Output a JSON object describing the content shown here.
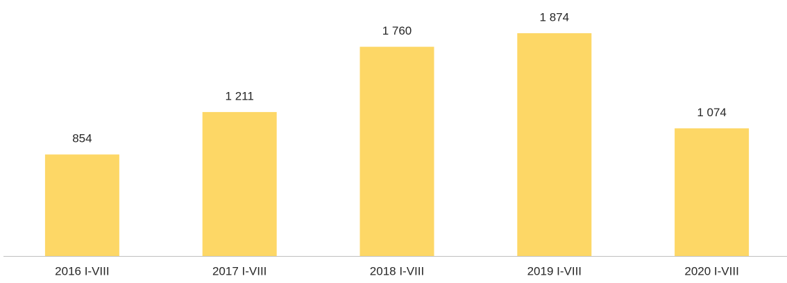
{
  "chart_data": {
    "type": "bar",
    "categories": [
      "2016 I-VIII",
      "2017 I-VIII",
      "2018 I-VIII",
      "2019 I-VIII",
      "2020 I-VIII"
    ],
    "values": [
      854,
      1211,
      1760,
      1874,
      1074
    ],
    "value_labels": [
      "854",
      "1 211",
      "1 760",
      "1 874",
      "1 074"
    ],
    "color": "#fdd766"
  }
}
